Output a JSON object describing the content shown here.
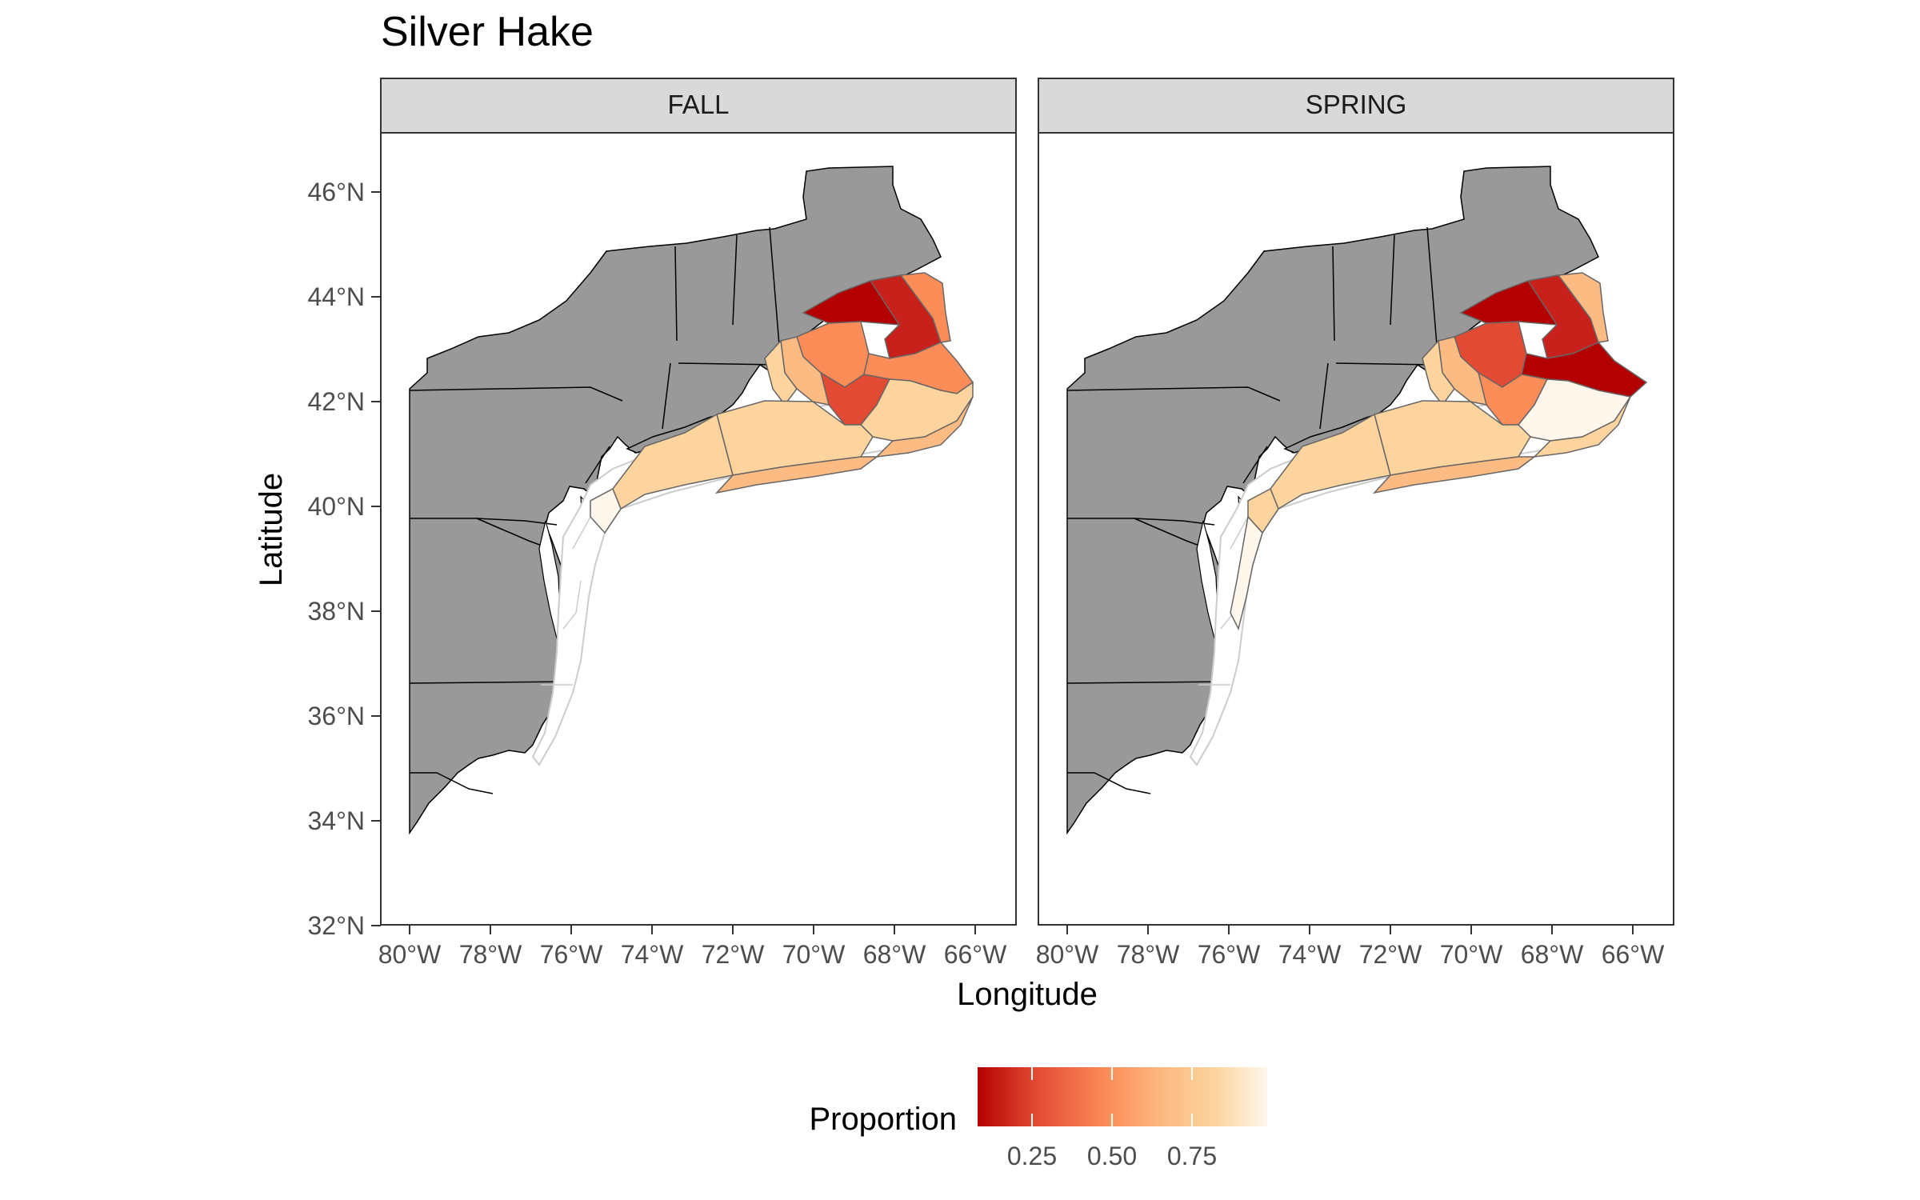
{
  "title": "Silver Hake",
  "x_axis": {
    "title": "Longitude",
    "ticks": [
      "80°W",
      "78°W",
      "76°W",
      "74°W",
      "72°W",
      "70°W",
      "68°W",
      "66°W"
    ]
  },
  "y_axis": {
    "title": "Latitude",
    "ticks": [
      "46°N",
      "44°N",
      "42°N",
      "40°N",
      "38°N",
      "36°N",
      "34°N",
      "32°N"
    ]
  },
  "facets": [
    "FALL",
    "SPRING"
  ],
  "legend": {
    "title": "Proportion",
    "ticks": [
      "0.25",
      "0.50",
      "0.75"
    ],
    "colors": [
      "#b30000",
      "#e34a33",
      "#fc8d59",
      "#fdbb84",
      "#fdd49e",
      "#fff7ec"
    ]
  },
  "colors": {
    "land": "#999999",
    "land_border": "#000000",
    "strip_fill": "#d9d9d9",
    "panel_border": "#333333",
    "shelf_outline": "#cccccc"
  }
}
